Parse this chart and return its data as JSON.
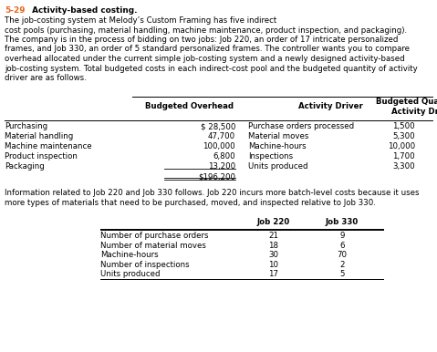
{
  "title_number": "5-29",
  "title_bold": " Activity-based costing.",
  "body_lines": [
    "The job-costing system at Melody’s Custom Framing has five indirect",
    "cost pools (purchasing, material handling, machine maintenance, product inspection, and packaging).",
    "The company is in the process of bidding on two jobs: Job 220, an order of 17 intricate personalized",
    "frames, and Job 330, an order of 5 standard personalized frames. The controller wants you to compare",
    "overhead allocated under the current simple job-costing system and a newly designed activity-based",
    "job-costing system. Total budgeted costs in each indirect-cost pool and the budgeted quantity of activity",
    "driver are as follows."
  ],
  "t1_rows": [
    [
      "Purchasing",
      "$ 28,500",
      "Purchase orders processed",
      "1,500"
    ],
    [
      "Material handling",
      "47,700",
      "Material moves",
      "5,300"
    ],
    [
      "Machine maintenance",
      "100,000",
      "Machine-hours",
      "10,000"
    ],
    [
      "Product inspection",
      "6,800",
      "Inspections",
      "1,700"
    ],
    [
      "Packaging",
      "13,200",
      "Units produced",
      "3,300"
    ],
    [
      "",
      "$196,200",
      "",
      ""
    ]
  ],
  "mid_lines": [
    "Information related to Job 220 and Job 330 follows. Job 220 incurs more batch-level costs because it uses",
    "more types of materials that need to be purchased, moved, and inspected relative to Job 330."
  ],
  "t2_rows": [
    [
      "Number of purchase orders",
      "21",
      "9"
    ],
    [
      "Number of material moves",
      "18",
      "6"
    ],
    [
      "Machine-hours",
      "30",
      "70"
    ],
    [
      "Number of inspections",
      "10",
      "2"
    ],
    [
      "Units produced",
      "17",
      "5"
    ]
  ],
  "orange": "#e8651a",
  "black": "#000000",
  "white": "#ffffff"
}
